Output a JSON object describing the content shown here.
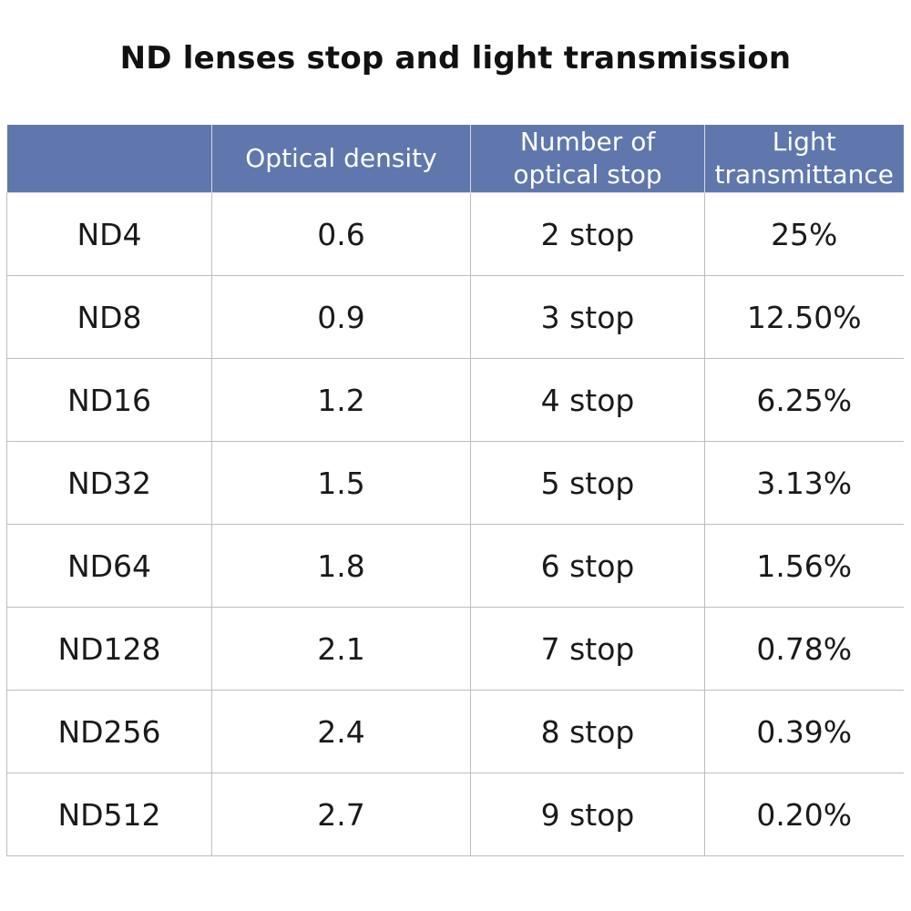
{
  "title": "ND lenses stop and light transmission",
  "colors": {
    "header_background": "#6077ad",
    "header_text": "#ffffff",
    "grid": "#bdbdbd"
  },
  "chart_data": {
    "type": "table",
    "title": "ND lenses stop and light transmission",
    "columns": [
      {
        "key": "filter",
        "label_lines": [
          ""
        ]
      },
      {
        "key": "optical_density",
        "label_lines": [
          "Optical density"
        ]
      },
      {
        "key": "stops",
        "label_lines": [
          "Number of",
          "optical stop"
        ]
      },
      {
        "key": "transmittance",
        "label_lines": [
          "Light",
          "transmittance"
        ]
      }
    ],
    "rows": [
      [
        "ND4",
        "0.6",
        "2 stop",
        "25%"
      ],
      [
        "ND8",
        "0.9",
        "3 stop",
        "12.50%"
      ],
      [
        "ND16",
        "1.2",
        "4 stop",
        "6.25%"
      ],
      [
        "ND32",
        "1.5",
        "5 stop",
        "3.13%"
      ],
      [
        "ND64",
        "1.8",
        "6 stop",
        "1.56%"
      ],
      [
        "ND128",
        "2.1",
        "7 stop",
        "0.78%"
      ],
      [
        "ND256",
        "2.4",
        "8 stop",
        "0.39%"
      ],
      [
        "ND512",
        "2.7",
        "9 stop",
        "0.20%"
      ]
    ]
  }
}
